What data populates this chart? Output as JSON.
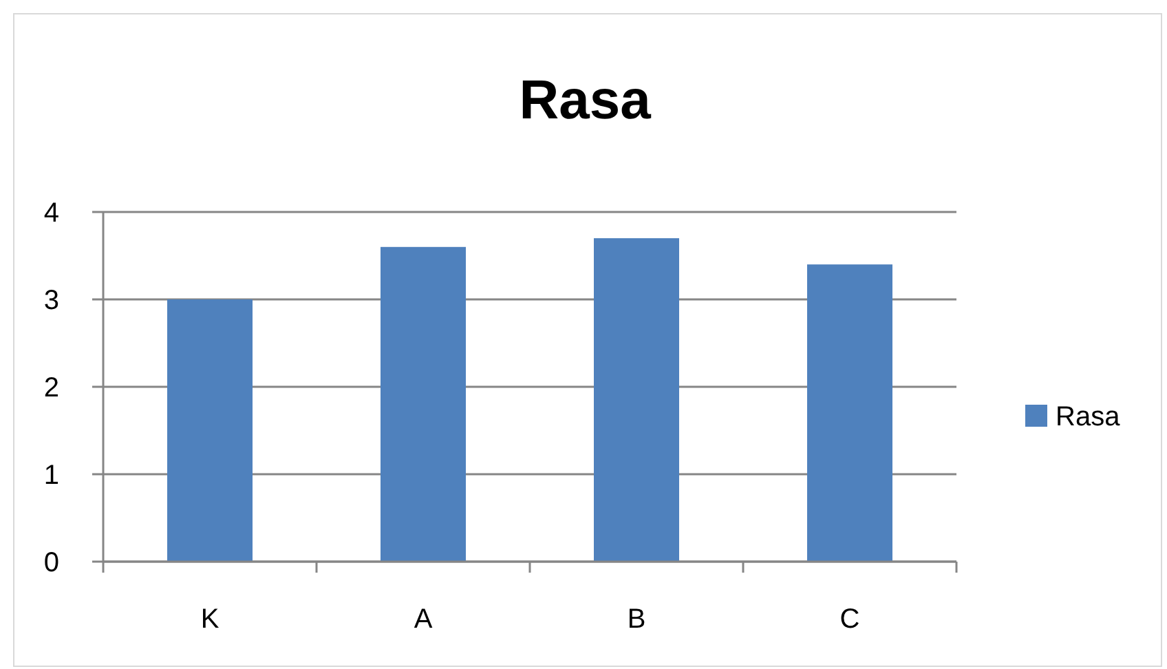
{
  "chart_data": {
    "type": "bar",
    "title": "Rasa",
    "categories": [
      "K",
      "A",
      "B",
      "C"
    ],
    "series": [
      {
        "name": "Rasa",
        "color": "#4f81bd",
        "values": [
          3.0,
          3.6,
          3.7,
          3.4
        ]
      }
    ],
    "ylim": [
      0,
      4
    ],
    "yticks": [
      0,
      1,
      2,
      3,
      4
    ],
    "grid": "y",
    "legend": "right"
  }
}
